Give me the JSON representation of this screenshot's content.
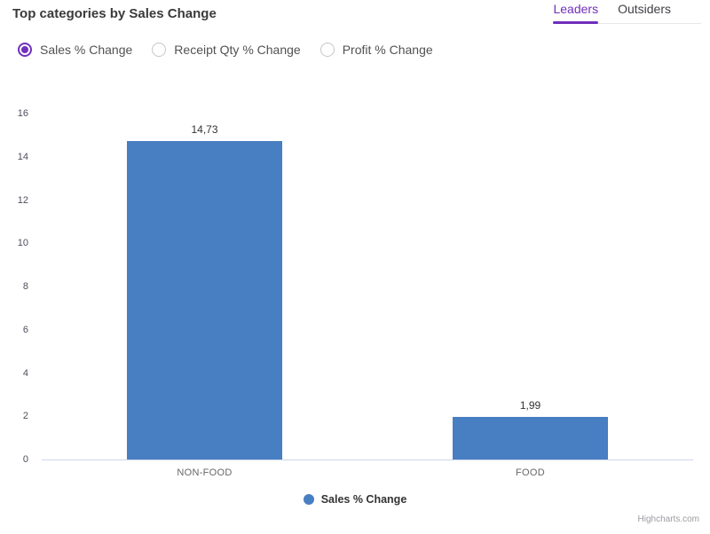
{
  "header": {
    "title": "Top categories by Sales Change",
    "tabs": [
      {
        "label": "Leaders",
        "active": true
      },
      {
        "label": "Outsiders",
        "active": false
      }
    ]
  },
  "controls": {
    "radios": [
      {
        "label": "Sales % Change",
        "selected": true
      },
      {
        "label": "Receipt Qty % Change",
        "selected": false
      },
      {
        "label": "Profit % Change",
        "selected": false
      }
    ]
  },
  "chart_data": {
    "type": "bar",
    "categories": [
      "NON-FOOD",
      "FOOD"
    ],
    "values": [
      14.73,
      1.99
    ],
    "value_labels": [
      "14,73",
      "1,99"
    ],
    "series": [
      {
        "name": "Sales % Change",
        "values": [
          14.73,
          1.99
        ]
      }
    ],
    "title": "Top categories by Sales Change",
    "xlabel": "",
    "ylabel": "",
    "ylim": [
      0,
      16
    ],
    "yticks": [
      0,
      2,
      4,
      6,
      8,
      10,
      12,
      14,
      16
    ],
    "grid": false,
    "legend_position": "bottom-center",
    "bar_color": "#487ec2"
  },
  "legend": {
    "label": "Sales % Change"
  },
  "credit": "Highcharts.com",
  "colors": {
    "accent_purple": "#702fba",
    "bar_blue": "#487ec2",
    "axis_line": "#ccd6eb",
    "title_text": "#3a3a3a"
  }
}
